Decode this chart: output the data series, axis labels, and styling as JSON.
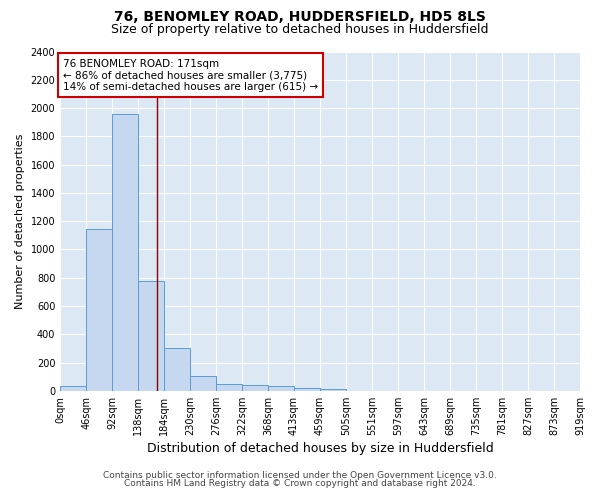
{
  "title": "76, BENOMLEY ROAD, HUDDERSFIELD, HD5 8LS",
  "subtitle": "Size of property relative to detached houses in Huddersfield",
  "xlabel": "Distribution of detached houses by size in Huddersfield",
  "ylabel": "Number of detached properties",
  "bar_edges": [
    0,
    46,
    92,
    138,
    184,
    230,
    276,
    322,
    368,
    413,
    459,
    505,
    551,
    597,
    643,
    689,
    735,
    781,
    827,
    873,
    919
  ],
  "bar_heights": [
    35,
    1145,
    1960,
    780,
    305,
    105,
    50,
    40,
    35,
    18,
    15,
    0,
    0,
    0,
    0,
    0,
    0,
    0,
    0,
    0
  ],
  "bar_color": "#c5d8ef",
  "bar_edge_color": "#5b9bd5",
  "bg_color": "#dce9f5",
  "grid_color": "#ffffff",
  "red_line_x": 171,
  "annotation_text": "76 BENOMLEY ROAD: 171sqm\n← 86% of detached houses are smaller (3,775)\n14% of semi-detached houses are larger (615) →",
  "annotation_box_color": "#ffffff",
  "annotation_box_edge": "#cc0000",
  "ylim": [
    0,
    2400
  ],
  "yticks": [
    0,
    200,
    400,
    600,
    800,
    1000,
    1200,
    1400,
    1600,
    1800,
    2000,
    2200,
    2400
  ],
  "xtick_labels": [
    "0sqm",
    "46sqm",
    "92sqm",
    "138sqm",
    "184sqm",
    "230sqm",
    "276sqm",
    "322sqm",
    "368sqm",
    "413sqm",
    "459sqm",
    "505sqm",
    "551sqm",
    "597sqm",
    "643sqm",
    "689sqm",
    "735sqm",
    "781sqm",
    "827sqm",
    "873sqm",
    "919sqm"
  ],
  "footer1": "Contains HM Land Registry data © Crown copyright and database right 2024.",
  "footer2": "Contains public sector information licensed under the Open Government Licence v3.0.",
  "title_fontsize": 10,
  "subtitle_fontsize": 9,
  "xlabel_fontsize": 9,
  "ylabel_fontsize": 8,
  "tick_fontsize": 7,
  "footer_fontsize": 6.5,
  "annotation_fontsize": 7.5
}
